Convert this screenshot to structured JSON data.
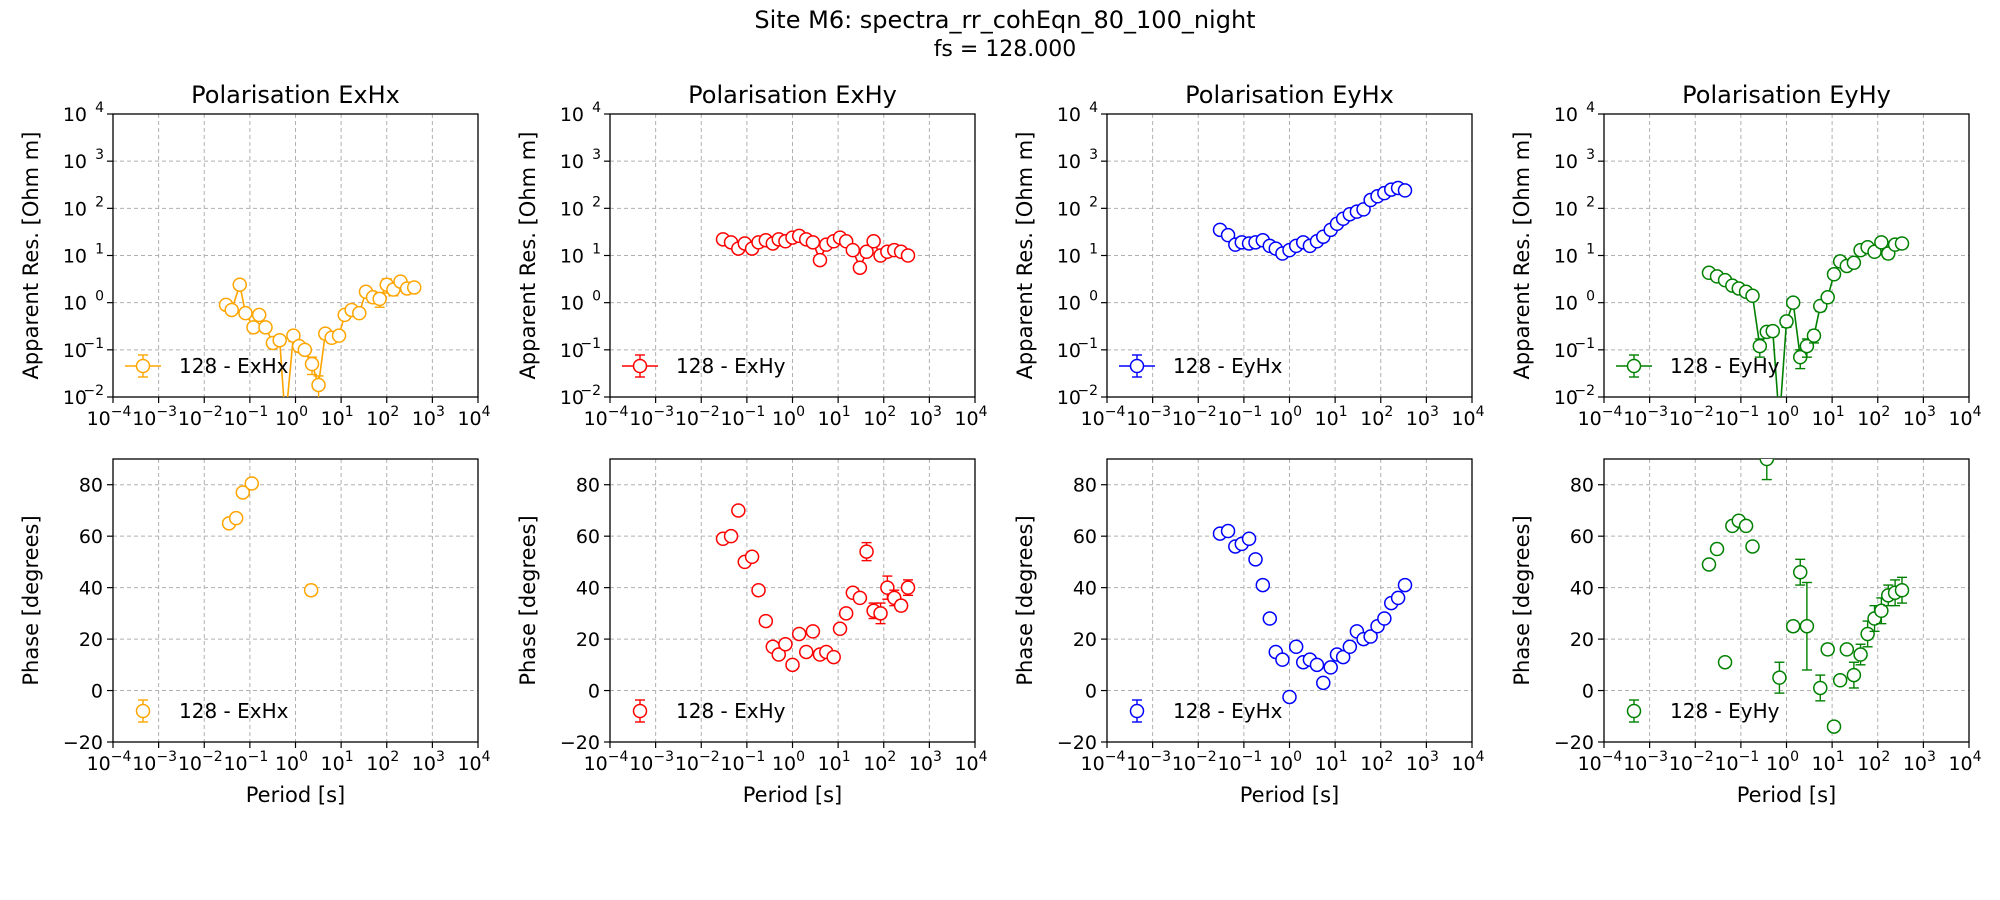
{
  "figure": {
    "title": "Site M6: spectra_rr_cohEqn_80_100_night",
    "subtitle": "fs = 128.000"
  },
  "chart_data": [
    {
      "type": "line",
      "title": "Polarisation ExHx",
      "xlabel": "",
      "ylabel": "Apparent Res. [Ohm m]",
      "xscale": "log",
      "yscale": "log",
      "xlim": [
        0.0001,
        10000
      ],
      "ylim": [
        0.01,
        10000
      ],
      "xticks": [
        "10",
        "10",
        "10",
        "10",
        "10",
        "10",
        "10",
        "10",
        "10"
      ],
      "xtick_exp": [
        "−4",
        "−3",
        "−2",
        "−1",
        "0",
        "1",
        "2",
        "3",
        "4"
      ],
      "yticks": [
        "10",
        "10",
        "10",
        "10",
        "10",
        "10",
        "10"
      ],
      "ytick_exp": [
        "−2",
        "−1",
        "0",
        "1",
        "2",
        "3",
        "4"
      ],
      "grid": true,
      "legend_position": "lower-left",
      "color": "#FFA500",
      "series": [
        {
          "name": "128 - ExHx",
          "x": [
            0.03,
            0.04,
            0.06,
            0.08,
            0.12,
            0.16,
            0.22,
            0.32,
            0.45,
            0.6,
            0.9,
            1.2,
            1.6,
            2.3,
            3.2,
            4.5,
            6.2,
            9,
            12,
            17,
            25,
            35,
            50,
            70,
            100,
            140,
            200,
            280,
            400
          ],
          "y": [
            0.9,
            0.7,
            2.4,
            0.6,
            0.3,
            0.55,
            0.3,
            0.14,
            0.16,
            0.003,
            0.2,
            0.12,
            0.1,
            0.05,
            0.018,
            0.22,
            0.18,
            0.2,
            0.55,
            0.7,
            0.6,
            1.7,
            1.3,
            1.2,
            2.4,
            1.9,
            2.8,
            2.0,
            2.1
          ],
          "yerr": [
            0.1,
            0.1,
            0.2,
            0.1,
            0.05,
            0.1,
            0.05,
            0.03,
            0.03,
            0,
            0.05,
            0.03,
            0.02,
            0.02,
            0.01,
            0.05,
            0.04,
            0.04,
            0.1,
            0.1,
            0.1,
            0.3,
            0.3,
            0.4,
            0.8,
            0.5,
            0.6,
            0.4,
            0.4
          ]
        }
      ]
    },
    {
      "type": "line",
      "title": "Polarisation ExHy",
      "xlabel": "",
      "ylabel": "Apparent Res. [Ohm m]",
      "xscale": "log",
      "yscale": "log",
      "xlim": [
        0.0001,
        10000
      ],
      "ylim": [
        0.01,
        10000
      ],
      "xticks": [
        "10",
        "10",
        "10",
        "10",
        "10",
        "10",
        "10",
        "10",
        "10"
      ],
      "xtick_exp": [
        "−4",
        "−3",
        "−2",
        "−1",
        "0",
        "1",
        "2",
        "3",
        "4"
      ],
      "yticks": [
        "10",
        "10",
        "10",
        "10",
        "10",
        "10",
        "10"
      ],
      "ytick_exp": [
        "−2",
        "−1",
        "0",
        "1",
        "2",
        "3",
        "4"
      ],
      "grid": true,
      "legend_position": "lower-left",
      "color": "#FF0000",
      "series": [
        {
          "name": "128 - ExHy",
          "x": [
            0.03,
            0.045,
            0.065,
            0.09,
            0.13,
            0.18,
            0.26,
            0.37,
            0.5,
            0.7,
            1.0,
            1.4,
            2.0,
            2.8,
            4,
            5.5,
            8,
            11,
            15,
            21,
            30,
            42,
            60,
            85,
            120,
            170,
            240,
            340
          ],
          "y": [
            22,
            19,
            14,
            18,
            14,
            19,
            21,
            18,
            22,
            20,
            24,
            26,
            22,
            19,
            8,
            17,
            20,
            24,
            20,
            13,
            5.5,
            12,
            20,
            10,
            12,
            13,
            12,
            10
          ],
          "yerr": [
            2,
            2,
            2,
            2,
            2,
            2,
            2,
            2,
            2,
            2,
            3,
            3,
            3,
            2,
            1.5,
            2,
            2,
            3,
            2,
            2,
            1,
            2,
            3,
            2,
            2,
            2,
            2,
            2
          ]
        }
      ]
    },
    {
      "type": "line",
      "title": "Polarisation EyHx",
      "xlabel": "",
      "ylabel": "Apparent Res. [Ohm m]",
      "xscale": "log",
      "yscale": "log",
      "xlim": [
        0.0001,
        10000
      ],
      "ylim": [
        0.01,
        10000
      ],
      "xticks": [
        "10",
        "10",
        "10",
        "10",
        "10",
        "10",
        "10",
        "10",
        "10"
      ],
      "xtick_exp": [
        "−4",
        "−3",
        "−2",
        "−1",
        "0",
        "1",
        "2",
        "3",
        "4"
      ],
      "yticks": [
        "10",
        "10",
        "10",
        "10",
        "10",
        "10",
        "10"
      ],
      "ytick_exp": [
        "−2",
        "−1",
        "0",
        "1",
        "2",
        "3",
        "4"
      ],
      "grid": true,
      "legend_position": "lower-left",
      "color": "#0000FF",
      "series": [
        {
          "name": "128 - EyHx",
          "x": [
            0.03,
            0.045,
            0.065,
            0.09,
            0.13,
            0.18,
            0.26,
            0.37,
            0.5,
            0.7,
            1.0,
            1.4,
            2.0,
            2.8,
            4,
            5.5,
            8,
            11,
            15,
            21,
            30,
            42,
            60,
            85,
            120,
            170,
            240,
            340
          ],
          "y": [
            35,
            27,
            17,
            19,
            18,
            19,
            21,
            16,
            14,
            11,
            13,
            16,
            19,
            16,
            20,
            25,
            35,
            47,
            60,
            75,
            85,
            95,
            150,
            180,
            210,
            250,
            270,
            240
          ],
          "yerr": [
            3,
            3,
            2,
            2,
            2,
            2,
            2,
            2,
            2,
            1,
            2,
            2,
            2,
            2,
            2,
            3,
            4,
            5,
            6,
            8,
            9,
            10,
            15,
            18,
            20,
            25,
            30,
            25
          ]
        }
      ]
    },
    {
      "type": "line",
      "title": "Polarisation EyHy",
      "xlabel": "",
      "ylabel": "Apparent Res. [Ohm m]",
      "xscale": "log",
      "yscale": "log",
      "xlim": [
        0.0001,
        10000
      ],
      "ylim": [
        0.01,
        10000
      ],
      "xticks": [
        "10",
        "10",
        "10",
        "10",
        "10",
        "10",
        "10",
        "10",
        "10"
      ],
      "xtick_exp": [
        "−4",
        "−3",
        "−2",
        "−1",
        "0",
        "1",
        "2",
        "3",
        "4"
      ],
      "yticks": [
        "10",
        "10",
        "10",
        "10",
        "10",
        "10",
        "10"
      ],
      "ytick_exp": [
        "−2",
        "−1",
        "0",
        "1",
        "2",
        "3",
        "4"
      ],
      "grid": true,
      "legend_position": "lower-left",
      "color": "#008000",
      "series": [
        {
          "name": "128 - EyHy",
          "x": [
            0.02,
            0.03,
            0.045,
            0.065,
            0.09,
            0.13,
            0.18,
            0.26,
            0.37,
            0.5,
            0.7,
            1.0,
            1.4,
            2.0,
            2.8,
            4,
            5.5,
            8,
            11,
            15,
            21,
            30,
            42,
            60,
            85,
            120,
            170,
            240,
            340
          ],
          "y": [
            4.3,
            3.6,
            3.0,
            2.3,
            2.0,
            1.7,
            1.4,
            0.12,
            0.24,
            0.25,
            0.003,
            0.4,
            1.0,
            0.07,
            0.12,
            0.2,
            0.85,
            1.3,
            4.0,
            7.5,
            6,
            7,
            13,
            15,
            12,
            19,
            11,
            17,
            18
          ],
          "yerr": [
            0.4,
            0.3,
            0.3,
            0.2,
            0.2,
            0.2,
            0.2,
            0.05,
            0.05,
            0.05,
            0,
            0.1,
            0.2,
            0.03,
            0.05,
            0.06,
            0.2,
            0.3,
            0.8,
            1.5,
            1.2,
            1.4,
            2.5,
            3,
            2.5,
            4,
            2.5,
            3.5,
            3.5
          ]
        }
      ]
    },
    {
      "type": "scatter",
      "title": "",
      "xlabel": "Period [s]",
      "ylabel": "Phase [degrees]",
      "xscale": "log",
      "yscale": "linear",
      "xlim": [
        0.0001,
        10000
      ],
      "ylim": [
        -20,
        90
      ],
      "xticks": [
        "10",
        "10",
        "10",
        "10",
        "10",
        "10",
        "10",
        "10",
        "10"
      ],
      "xtick_exp": [
        "−4",
        "−3",
        "−2",
        "−1",
        "0",
        "1",
        "2",
        "3",
        "4"
      ],
      "yticks": [
        "−20",
        "0",
        "20",
        "40",
        "60",
        "80"
      ],
      "ytick_values": [
        -20,
        0,
        20,
        40,
        60,
        80
      ],
      "grid": true,
      "legend_position": "lower-left",
      "color": "#FFA500",
      "series": [
        {
          "name": "128 - ExHx",
          "x": [
            0.035,
            0.05,
            0.07,
            0.11,
            2.2
          ],
          "y": [
            65,
            67,
            77,
            80.5,
            39
          ],
          "yerr": [
            1,
            1,
            1,
            1,
            2
          ]
        }
      ]
    },
    {
      "type": "scatter",
      "title": "",
      "xlabel": "Period [s]",
      "ylabel": "Phase [degrees]",
      "xscale": "log",
      "yscale": "linear",
      "xlim": [
        0.0001,
        10000
      ],
      "ylim": [
        -20,
        90
      ],
      "xticks": [
        "10",
        "10",
        "10",
        "10",
        "10",
        "10",
        "10",
        "10",
        "10"
      ],
      "xtick_exp": [
        "−4",
        "−3",
        "−2",
        "−1",
        "0",
        "1",
        "2",
        "3",
        "4"
      ],
      "yticks": [
        "−20",
        "0",
        "20",
        "40",
        "60",
        "80"
      ],
      "ytick_values": [
        -20,
        0,
        20,
        40,
        60,
        80
      ],
      "grid": true,
      "legend_position": "lower-left",
      "color": "#FF0000",
      "series": [
        {
          "name": "128 - ExHy",
          "x": [
            0.03,
            0.045,
            0.065,
            0.09,
            0.13,
            0.18,
            0.26,
            0.37,
            0.5,
            0.7,
            1.0,
            1.4,
            2.0,
            2.8,
            4,
            5.5,
            8,
            11,
            15,
            21,
            30,
            42,
            60,
            85,
            120,
            170,
            240,
            340
          ],
          "y": [
            59,
            60,
            70,
            50,
            52,
            39,
            27,
            17,
            14,
            18,
            10,
            22,
            15,
            23,
            14,
            15,
            13,
            24,
            30,
            38,
            36,
            54,
            31,
            30,
            40,
            36,
            33,
            40
          ],
          "yerr": [
            1,
            1,
            1,
            1,
            1,
            1,
            1,
            1,
            1,
            1,
            1,
            1,
            1,
            1,
            1,
            1,
            1,
            1,
            1,
            1,
            1,
            3.5,
            3,
            4,
            4.5,
            3,
            2,
            3
          ]
        }
      ]
    },
    {
      "type": "scatter",
      "title": "",
      "xlabel": "Period [s]",
      "ylabel": "Phase [degrees]",
      "xscale": "log",
      "yscale": "linear",
      "xlim": [
        0.0001,
        10000
      ],
      "ylim": [
        -20,
        90
      ],
      "xticks": [
        "10",
        "10",
        "10",
        "10",
        "10",
        "10",
        "10",
        "10",
        "10"
      ],
      "xtick_exp": [
        "−4",
        "−3",
        "−2",
        "−1",
        "0",
        "1",
        "2",
        "3",
        "4"
      ],
      "yticks": [
        "−20",
        "0",
        "20",
        "40",
        "60",
        "80"
      ],
      "ytick_values": [
        -20,
        0,
        20,
        40,
        60,
        80
      ],
      "grid": true,
      "legend_position": "lower-left",
      "color": "#0000FF",
      "series": [
        {
          "name": "128 - EyHx",
          "x": [
            0.03,
            0.045,
            0.065,
            0.09,
            0.13,
            0.18,
            0.26,
            0.37,
            0.5,
            0.7,
            1.0,
            1.4,
            2.0,
            2.8,
            4,
            5.5,
            8,
            11,
            15,
            21,
            30,
            42,
            60,
            85,
            120,
            170,
            240,
            340
          ],
          "y": [
            61,
            62,
            56,
            57,
            59,
            51,
            41,
            28,
            15,
            12,
            -2.5,
            17,
            11,
            12,
            10,
            3,
            9,
            14,
            13,
            17,
            23,
            20,
            21,
            25,
            28,
            34,
            36,
            41
          ],
          "yerr": [
            1,
            1,
            1,
            1,
            1,
            1,
            1,
            1,
            1,
            1,
            1,
            1,
            1,
            1,
            1,
            1,
            1,
            1,
            1,
            1,
            1,
            1,
            1,
            1,
            1,
            1,
            1,
            1
          ]
        }
      ]
    },
    {
      "type": "scatter",
      "title": "",
      "xlabel": "Period [s]",
      "ylabel": "Phase [degrees]",
      "xscale": "log",
      "yscale": "linear",
      "xlim": [
        0.0001,
        10000
      ],
      "ylim": [
        -20,
        90
      ],
      "xticks": [
        "10",
        "10",
        "10",
        "10",
        "10",
        "10",
        "10",
        "10",
        "10"
      ],
      "xtick_exp": [
        "−4",
        "−3",
        "−2",
        "−1",
        "0",
        "1",
        "2",
        "3",
        "4"
      ],
      "yticks": [
        "−20",
        "0",
        "20",
        "40",
        "60",
        "80"
      ],
      "ytick_values": [
        -20,
        0,
        20,
        40,
        60,
        80
      ],
      "grid": true,
      "legend_position": "lower-left",
      "color": "#008000",
      "series": [
        {
          "name": "128 - EyHy",
          "x": [
            0.02,
            0.03,
            0.045,
            0.065,
            0.09,
            0.13,
            0.18,
            0.37,
            0.7,
            1.4,
            2.0,
            2.8,
            5.5,
            8,
            11,
            15,
            21,
            30,
            42,
            60,
            85,
            120,
            170,
            240,
            340
          ],
          "y": [
            49,
            55,
            11,
            64,
            66,
            64,
            56,
            90,
            5,
            25,
            46,
            25,
            1,
            16,
            -14,
            4,
            16,
            6,
            14,
            22,
            28,
            31,
            37,
            38,
            39
          ],
          "yerr": [
            1,
            1,
            1,
            1,
            1,
            1,
            1,
            8,
            6,
            2,
            5,
            17,
            5,
            2,
            1,
            1,
            1,
            5,
            4,
            5,
            5,
            5,
            4,
            5,
            5
          ]
        }
      ]
    }
  ]
}
